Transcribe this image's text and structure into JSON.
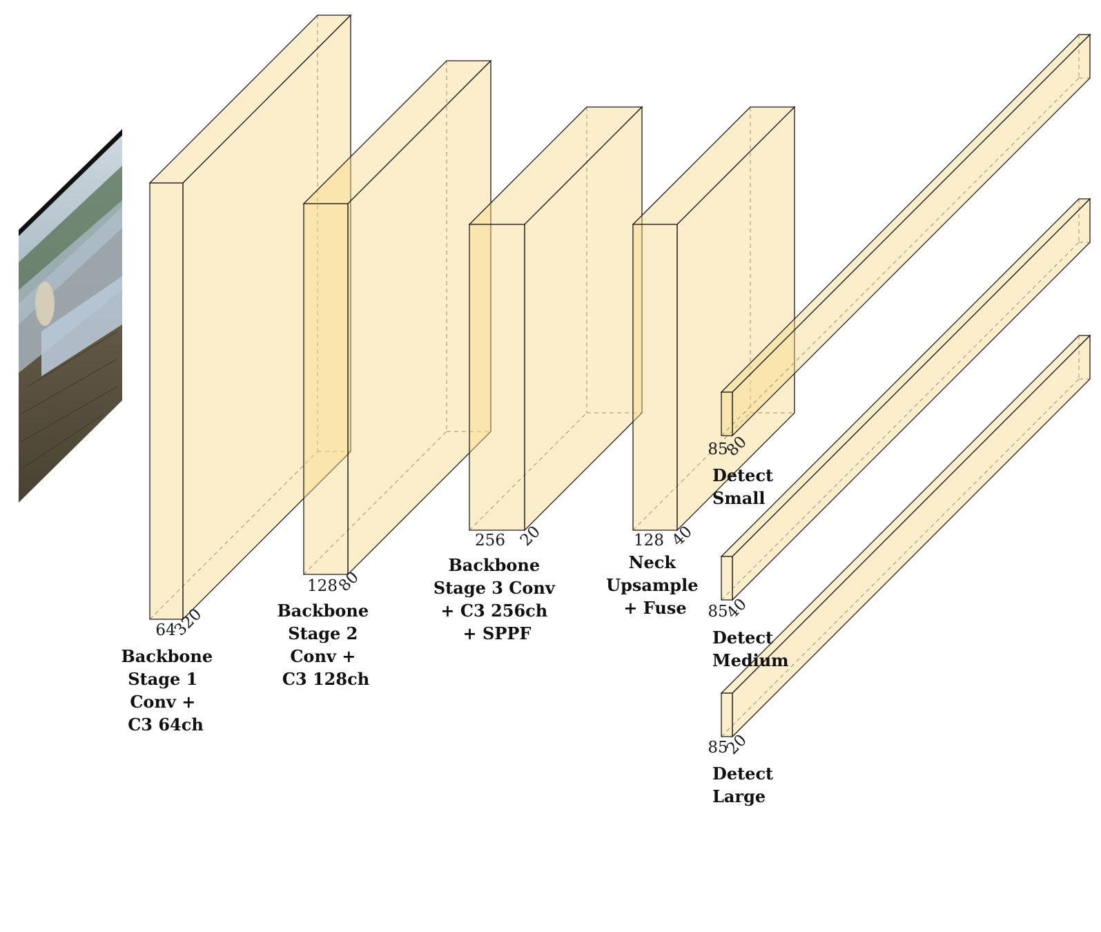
{
  "input_image": {
    "icon": "camera-trap-photo-icon"
  },
  "colors": {
    "block_fill": "#f9d98a",
    "block_stroke": "#1a1a1a"
  },
  "layers": [
    {
      "id": "stage1",
      "channels": "64",
      "spatial": "320",
      "label": [
        "Backbone",
        "Stage 1",
        "Conv +",
        "C3 64ch"
      ]
    },
    {
      "id": "stage2",
      "channels": "128",
      "spatial": "80",
      "label": [
        "Backbone",
        "Stage 2",
        "Conv +",
        "C3 128ch"
      ]
    },
    {
      "id": "stage3",
      "channels": "256",
      "spatial": "20",
      "label": [
        "Backbone",
        "Stage 3 Conv",
        "+ C3 256ch",
        "+ SPPF"
      ]
    },
    {
      "id": "neck",
      "channels": "128",
      "spatial": "40",
      "label": [
        "Neck",
        "Upsample",
        "+ Fuse"
      ]
    },
    {
      "id": "detect-small",
      "channels": "85",
      "spatial": "80",
      "label": [
        "Detect",
        "Small"
      ]
    },
    {
      "id": "detect-medium",
      "channels": "85",
      "spatial": "40",
      "label": [
        "Detect",
        "Medium"
      ]
    },
    {
      "id": "detect-large",
      "channels": "85",
      "spatial": "20",
      "label": [
        "Detect",
        "Large"
      ]
    }
  ]
}
